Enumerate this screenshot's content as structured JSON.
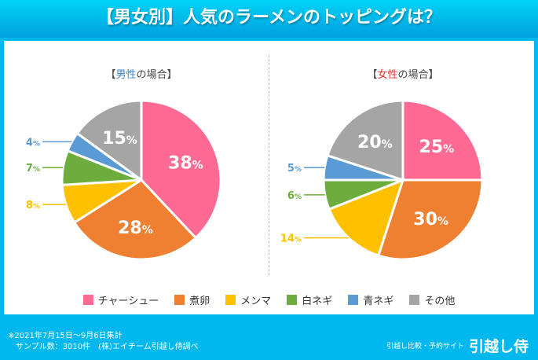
{
  "title": "【男女別】人気のラーメンのトッピングは？",
  "chart_data": [
    {
      "type": "pie",
      "title_parts": [
        "【",
        "男性",
        "の場合】"
      ],
      "title_accent": "#3a7fc8",
      "categories": [
        "チャーシュー",
        "煮卵",
        "メンマ",
        "白ネギ",
        "青ネギ",
        "その他"
      ],
      "values": [
        38,
        28,
        8,
        7,
        4,
        15
      ],
      "unit": "%"
    },
    {
      "type": "pie",
      "title_parts": [
        "【",
        "女性",
        "の場合】"
      ],
      "title_accent": "#e8302f",
      "categories": [
        "チャーシュー",
        "煮卵",
        "メンマ",
        "白ネギ",
        "青ネギ",
        "その他"
      ],
      "values": [
        25,
        30,
        14,
        6,
        5,
        20
      ],
      "unit": "%"
    }
  ],
  "legend": [
    "チャーシュー",
    "煮卵",
    "メンマ",
    "白ネギ",
    "青ネギ",
    "その他"
  ],
  "colors": [
    "#ff6a93",
    "#ef7f31",
    "#ffc000",
    "#6cad3d",
    "#5b9bd5",
    "#a5a5a5"
  ],
  "footer": {
    "line1": "※2021年7月15日～9月6日集計",
    "line2": "　サンプル数：3010件　(株)エイチーム引越し侍調べ"
  },
  "brand": {
    "sub": "引越し比較・予約サイト",
    "name": "引越し侍"
  }
}
